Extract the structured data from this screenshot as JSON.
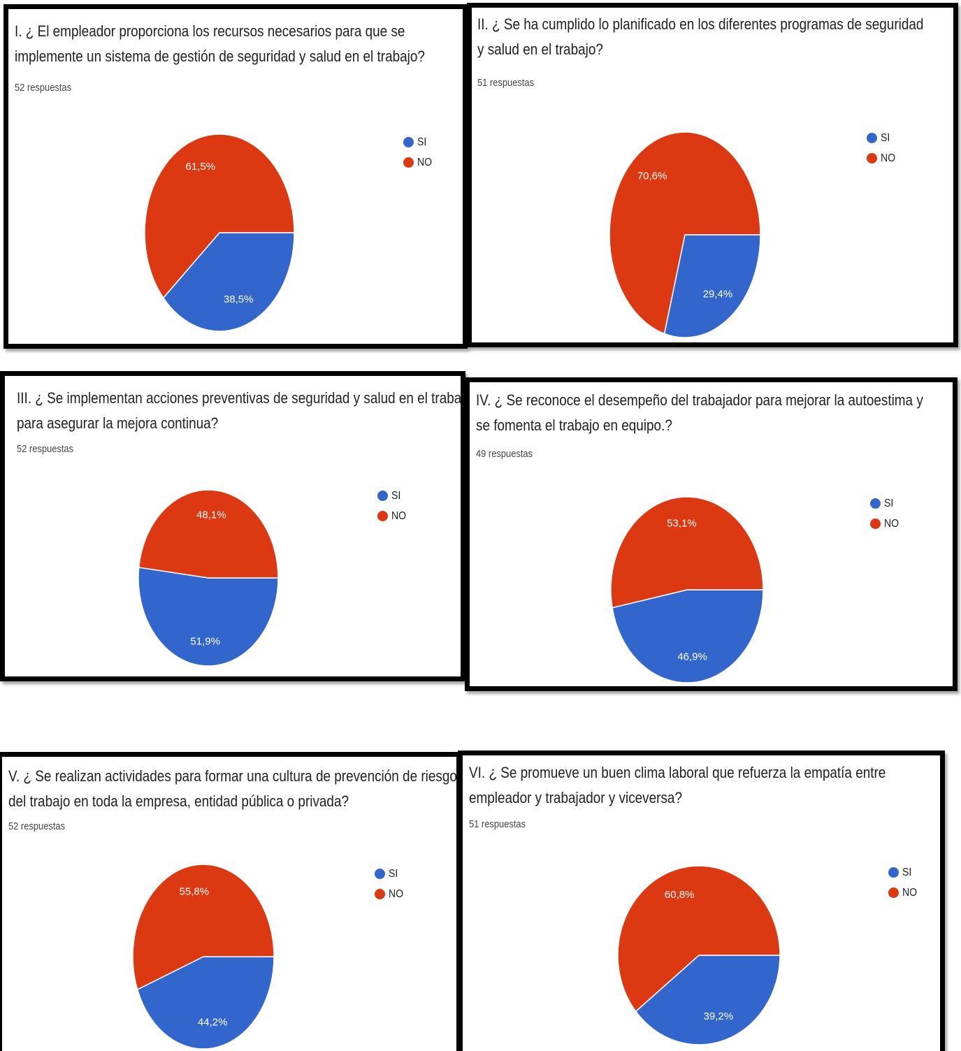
{
  "colors": {
    "si": "#3366cc",
    "no": "#dc3912"
  },
  "chart_data": [
    {
      "type": "pie",
      "title_lines": [
        "I.  ¿ El empleador proporciona los recursos necesarios para que se",
        "implemente un sistema de gestión de seguridad y salud en el trabajo?"
      ],
      "subtitle": "52 respuestas",
      "legend": [
        "SI",
        "NO"
      ],
      "legend_position": "right",
      "slices": [
        {
          "label": "SI",
          "value": 38.5,
          "display": "38,5%"
        },
        {
          "label": "NO",
          "value": 61.5,
          "display": "61,5%"
        }
      ]
    },
    {
      "type": "pie",
      "title_lines": [
        "II.  ¿ Se ha cumplido lo planificado en los diferentes programas de seguridad",
        "y salud en el trabajo?"
      ],
      "subtitle": "51 respuestas",
      "legend": [
        "SI",
        "NO"
      ],
      "legend_position": "right",
      "slices": [
        {
          "label": "SI",
          "value": 29.4,
          "display": "29,4%"
        },
        {
          "label": "NO",
          "value": 70.6,
          "display": "70,6%"
        }
      ]
    },
    {
      "type": "pie",
      "title_lines": [
        "III.  ¿ Se implementan acciones preventivas de seguridad y salud en el trabajo",
        "para asegurar la mejora continua?"
      ],
      "subtitle": "52 respuestas",
      "legend": [
        "SI",
        "NO"
      ],
      "legend_position": "right",
      "slices": [
        {
          "label": "SI",
          "value": 51.9,
          "display": "51,9%"
        },
        {
          "label": "NO",
          "value": 48.1,
          "display": "48,1%"
        }
      ]
    },
    {
      "type": "pie",
      "title_lines": [
        "IV. ¿ Se reconoce el desempeño del trabajador para mejorar la autoestima y",
        "se fomenta el trabajo en equipo.?"
      ],
      "subtitle": "49 respuestas",
      "legend": [
        "SI",
        "NO"
      ],
      "legend_position": "right",
      "slices": [
        {
          "label": "SI",
          "value": 46.9,
          "display": "46,9%"
        },
        {
          "label": "NO",
          "value": 53.1,
          "display": "53,1%"
        }
      ]
    },
    {
      "type": "pie",
      "title_lines": [
        "V.  ¿ Se realizan actividades para formar una cultura de prevención de riesgos",
        "del trabajo en toda la empresa, entidad pública o privada?"
      ],
      "subtitle": "52 respuestas",
      "legend": [
        "SI",
        "NO"
      ],
      "legend_position": "right",
      "slices": [
        {
          "label": "SI",
          "value": 44.2,
          "display": "44,2%"
        },
        {
          "label": "NO",
          "value": 55.8,
          "display": "55,8%"
        }
      ]
    },
    {
      "type": "pie",
      "title_lines": [
        "VI.  ¿ Se promueve un buen clima laboral que refuerza la empatía entre",
        "empleador y trabajador y viceversa?"
      ],
      "subtitle": "51 respuestas",
      "legend": [
        "SI",
        "NO"
      ],
      "legend_position": "right",
      "slices": [
        {
          "label": "SI",
          "value": 39.2,
          "display": "39,2%"
        },
        {
          "label": "NO",
          "value": 60.8,
          "display": "60,8%"
        }
      ]
    }
  ]
}
